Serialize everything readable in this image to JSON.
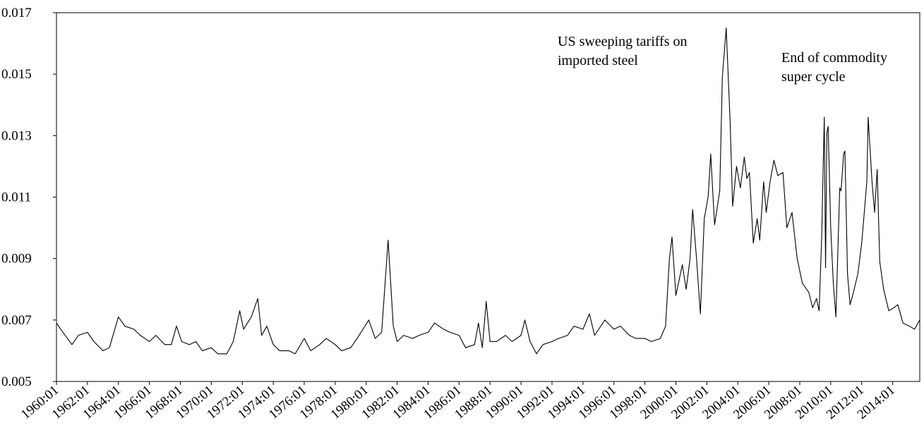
{
  "chart_data": {
    "type": "line",
    "color": "#000000",
    "x": [
      "1960:01",
      "1960:06",
      "1961:01",
      "1961:06",
      "1962:01",
      "1962:06",
      "1963:01",
      "1963:06",
      "1964:01",
      "1964:06",
      "1965:01",
      "1965:06",
      "1966:01",
      "1966:06",
      "1967:01",
      "1967:06",
      "1967:10",
      "1968:02",
      "1968:08",
      "1969:01",
      "1969:06",
      "1970:01",
      "1970:06",
      "1971:01",
      "1971:06",
      "1971:11",
      "1972:02",
      "1972:08",
      "1973:01",
      "1973:04",
      "1973:08",
      "1974:01",
      "1974:06",
      "1975:01",
      "1975:06",
      "1976:01",
      "1976:06",
      "1977:01",
      "1977:06",
      "1978:01",
      "1978:06",
      "1979:01",
      "1979:06",
      "1980:03",
      "1980:08",
      "1981:01",
      "1981:06",
      "1981:10",
      "1982:01",
      "1982:06",
      "1983:01",
      "1983:06",
      "1984:01",
      "1984:06",
      "1985:01",
      "1985:06",
      "1986:01",
      "1986:06",
      "1987:01",
      "1987:04",
      "1987:07",
      "1987:10",
      "1988:01",
      "1988:06",
      "1989:01",
      "1989:06",
      "1990:01",
      "1990:04",
      "1990:08",
      "1991:01",
      "1991:06",
      "1992:01",
      "1992:06",
      "1993:01",
      "1993:06",
      "1994:01",
      "1994:06",
      "1994:10",
      "1995:06",
      "1996:01",
      "1996:06",
      "1997:01",
      "1997:06",
      "1998:01",
      "1998:06",
      "1999:01",
      "1999:05",
      "1999:08",
      "1999:10",
      "2000:01",
      "2000:06",
      "2000:09",
      "2000:12",
      "2001:02",
      "2001:05",
      "2001:08",
      "2001:11",
      "2002:02",
      "2002:04",
      "2002:07",
      "2002:11",
      "2003:01",
      "2003:04",
      "2003:07",
      "2003:09",
      "2003:12",
      "2004:03",
      "2004:06",
      "2004:08",
      "2004:10",
      "2005:01",
      "2005:04",
      "2005:06",
      "2005:09",
      "2005:11",
      "2006:02",
      "2006:05",
      "2006:08",
      "2006:12",
      "2007:03",
      "2007:07",
      "2007:11",
      "2008:03",
      "2008:08",
      "2008:11",
      "2009:02",
      "2009:04",
      "2009:06",
      "2009:08",
      "2009:09",
      "2009:10",
      "2009:11",
      "2010:01",
      "2010:03",
      "2010:05",
      "2010:08",
      "2010:09",
      "2010:11",
      "2010:12",
      "2011:02",
      "2011:04",
      "2011:06",
      "2011:10",
      "2012:01",
      "2012:05",
      "2012:06",
      "2012:09",
      "2012:11",
      "2013:01",
      "2013:03",
      "2013:06",
      "2013:10",
      "2014:02",
      "2014:05",
      "2014:09",
      "2015:02",
      "2015:06",
      "2015:10"
    ],
    "values": [
      0.0069,
      0.0066,
      0.0062,
      0.0065,
      0.0066,
      0.0063,
      0.006,
      0.0061,
      0.0071,
      0.0068,
      0.0067,
      0.0065,
      0.0063,
      0.0065,
      0.0062,
      0.0062,
      0.0068,
      0.0063,
      0.0062,
      0.0063,
      0.006,
      0.0061,
      0.0059,
      0.0059,
      0.0063,
      0.0073,
      0.0067,
      0.0071,
      0.0077,
      0.0065,
      0.0068,
      0.0062,
      0.006,
      0.006,
      0.0059,
      0.0064,
      0.006,
      0.0062,
      0.0064,
      0.0062,
      0.006,
      0.0061,
      0.0064,
      0.007,
      0.0064,
      0.0066,
      0.0096,
      0.0068,
      0.0063,
      0.0065,
      0.0064,
      0.0065,
      0.0066,
      0.0069,
      0.0067,
      0.0066,
      0.0065,
      0.0061,
      0.0062,
      0.0069,
      0.0061,
      0.0076,
      0.0063,
      0.0063,
      0.0065,
      0.0063,
      0.0065,
      0.007,
      0.0063,
      0.0059,
      0.0062,
      0.0063,
      0.0064,
      0.0065,
      0.0068,
      0.0067,
      0.0072,
      0.0065,
      0.007,
      0.0067,
      0.0068,
      0.0065,
      0.0064,
      0.0064,
      0.0063,
      0.0064,
      0.0068,
      0.009,
      0.0097,
      0.0078,
      0.0088,
      0.008,
      0.009,
      0.0106,
      0.009,
      0.0072,
      0.0103,
      0.011,
      0.0124,
      0.0101,
      0.0112,
      0.0149,
      0.0165,
      0.0135,
      0.0107,
      0.012,
      0.0113,
      0.0123,
      0.0116,
      0.0118,
      0.0095,
      0.0103,
      0.0096,
      0.0115,
      0.0105,
      0.0115,
      0.0122,
      0.0117,
      0.0118,
      0.01,
      0.0105,
      0.009,
      0.0082,
      0.0079,
      0.0074,
      0.0077,
      0.0073,
      0.0097,
      0.0136,
      0.0087,
      0.0131,
      0.0133,
      0.01,
      0.0082,
      0.0071,
      0.0113,
      0.0112,
      0.0124,
      0.0125,
      0.0085,
      0.0075,
      0.0078,
      0.0085,
      0.0095,
      0.0115,
      0.0136,
      0.0115,
      0.0105,
      0.0119,
      0.0089,
      0.008,
      0.0073,
      0.0074,
      0.0075,
      0.0069,
      0.0068,
      0.0067,
      0.007
    ],
    "xlim": [
      "1960:01",
      "2015:10"
    ],
    "xticks": [
      "1960:01",
      "1962:01",
      "1964:01",
      "1966:01",
      "1968:01",
      "1970:01",
      "1972:01",
      "1974:01",
      "1976:01",
      "1978:01",
      "1980:01",
      "1982:01",
      "1984:01",
      "1986:01",
      "1988:01",
      "1990:01",
      "1992:01",
      "1994:01",
      "1996:01",
      "1998:01",
      "2000:01",
      "2002:01",
      "2004:01",
      "2006:01",
      "2008:01",
      "2010:01",
      "2012:01",
      "2014:01"
    ],
    "ylim": [
      0.005,
      0.017
    ],
    "yticks": [
      0.005,
      0.007,
      0.009,
      0.011,
      0.013,
      0.015,
      0.017
    ],
    "annotations": [
      [
        "US sweeping tariffs on",
        "imported steel"
      ],
      [
        "End of commodity",
        "super cycle"
      ]
    ]
  }
}
